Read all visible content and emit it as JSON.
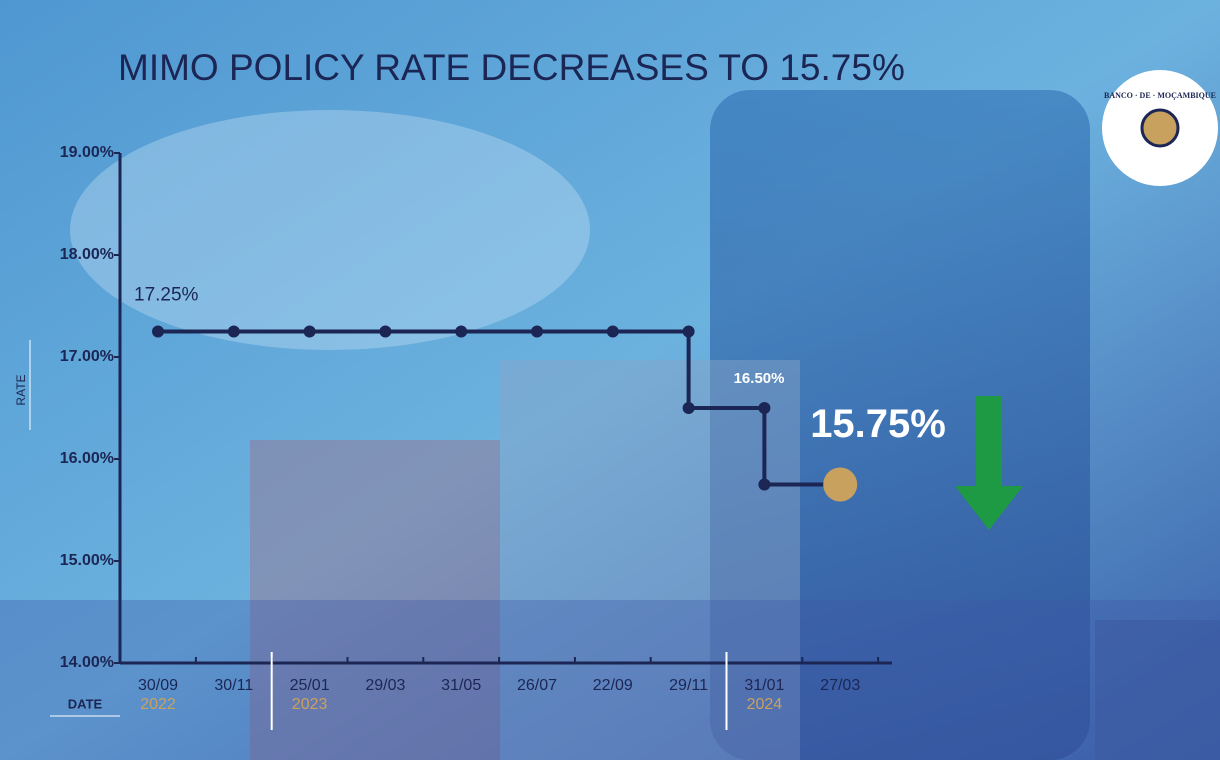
{
  "chart_data": {
    "type": "step",
    "title": "MIMO POLICY RATE DECREASES TO 15.75%",
    "y_label": "RATE",
    "x_label": "DATE",
    "logo_text": "BANCO · DE · MOÇAMBIQUE",
    "categories": [
      "30/09",
      "30/11",
      "25/01",
      "29/03",
      "31/05",
      "26/07",
      "22/09",
      "29/11",
      "31/01",
      "27/03"
    ],
    "x_groups": [
      {
        "label": "2022",
        "start": 0
      },
      {
        "label": "2023",
        "start": 2
      },
      {
        "label": "2024",
        "start": 8
      }
    ],
    "series": [
      {
        "name": "MIMO",
        "color": "#1c2654",
        "values": [
          17.25,
          17.25,
          17.25,
          17.25,
          17.25,
          17.25,
          17.25,
          16.5,
          15.75,
          15.75
        ],
        "value_labels": [
          "17.25%",
          null,
          null,
          null,
          null,
          null,
          null,
          "16.50%",
          null,
          "15.75%"
        ]
      }
    ],
    "highlight_color": "#c9a15f",
    "arrow_color": "#1e9a45",
    "ylim": [
      14,
      19
    ],
    "yticks": [
      {
        "value": 14,
        "label": "14.00%"
      },
      {
        "value": 15,
        "label": "15.00%"
      },
      {
        "value": 16,
        "label": "16.00%"
      },
      {
        "value": 17,
        "label": "17.00%"
      },
      {
        "value": 18,
        "label": "18.00%"
      },
      {
        "value": 19,
        "label": "19.00%"
      }
    ]
  }
}
